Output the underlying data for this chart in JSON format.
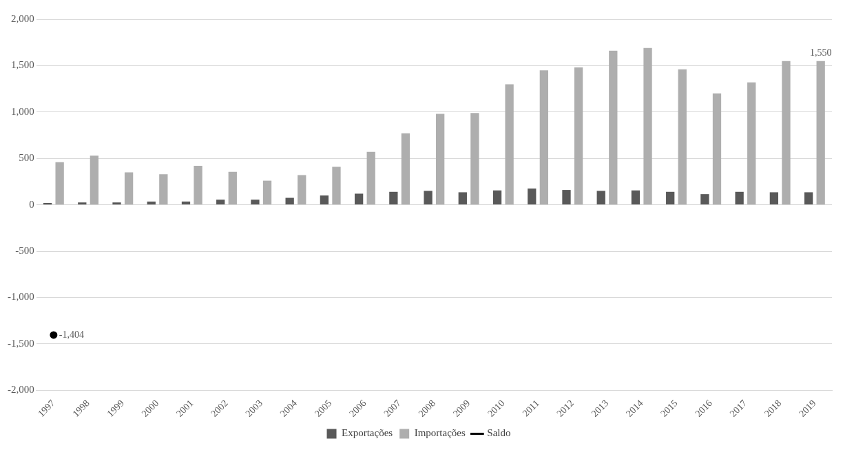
{
  "chart_data": {
    "type": "bar",
    "categories": [
      "1997",
      "1998",
      "1999",
      "2000",
      "2001",
      "2002",
      "2003",
      "2004",
      "2005",
      "2006",
      "2007",
      "2008",
      "2009",
      "2010",
      "2011",
      "2012",
      "2013",
      "2014",
      "2015",
      "2016",
      "2017",
      "2018",
      "2019"
    ],
    "series": [
      {
        "name": "Exportações",
        "color": "#595959",
        "values": [
          20,
          25,
          25,
          35,
          35,
          55,
          55,
          75,
          100,
          120,
          140,
          150,
          135,
          155,
          175,
          160,
          150,
          155,
          140,
          115,
          140,
          135,
          135
        ]
      },
      {
        "name": "Importações",
        "color": "#aeaeae",
        "values": [
          460,
          530,
          350,
          330,
          420,
          355,
          260,
          320,
          410,
          570,
          770,
          980,
          990,
          1300,
          1450,
          1480,
          1660,
          1690,
          1460,
          1200,
          1320,
          1550,
          1550
        ],
        "value_labels": [
          null,
          null,
          null,
          null,
          null,
          null,
          null,
          null,
          null,
          null,
          null,
          null,
          null,
          null,
          null,
          null,
          null,
          null,
          null,
          null,
          null,
          null,
          "1,550"
        ]
      },
      {
        "name": "Saldo",
        "type": "line",
        "color": "#000000",
        "marker": "circle",
        "values": [
          -1404,
          null,
          null,
          null,
          null,
          null,
          null,
          null,
          null,
          null,
          null,
          null,
          null,
          null,
          null,
          null,
          null,
          null,
          null,
          null,
          null,
          null,
          null
        ],
        "value_labels": [
          "-1,404",
          null,
          null,
          null,
          null,
          null,
          null,
          null,
          null,
          null,
          null,
          null,
          null,
          null,
          null,
          null,
          null,
          null,
          null,
          null,
          null,
          null,
          null
        ]
      }
    ],
    "ylim": [
      -2000,
      2000
    ],
    "yticks": [
      {
        "value": -2000,
        "label": "-2,000"
      },
      {
        "value": -1500,
        "label": "-1,500"
      },
      {
        "value": -1000,
        "label": "-1,000"
      },
      -500,
      0,
      500,
      {
        "value": 1000,
        "label": "1,000"
      },
      {
        "value": 1500,
        "label": "1,500"
      },
      {
        "value": 2000,
        "label": "2,000"
      }
    ],
    "grid": "y",
    "legend": "bottom"
  }
}
